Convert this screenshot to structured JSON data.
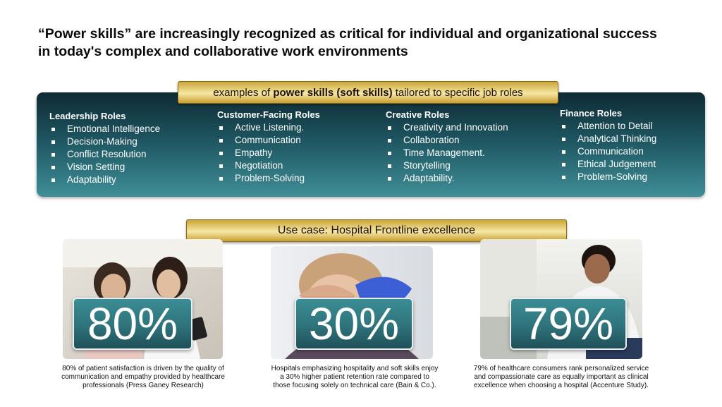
{
  "headline": "“Power skills” are increasingly recognized as critical for individual and organizational success in today's complex and collaborative work environments",
  "roles_banner": {
    "prefix": "examples of ",
    "bold": "power skills (soft skills)",
    "suffix": " tailored to specific job roles"
  },
  "roles": [
    {
      "title": "Leadership Roles",
      "items": [
        "Emotional Intelligence",
        "Decision-Making",
        "Conflict Resolution",
        "Vision Setting",
        "Adaptability"
      ]
    },
    {
      "title": "Customer-Facing Roles",
      "items": [
        "Active Listening.",
        "Communication",
        "Empathy",
        "Negotiation",
        "Problem-Solving"
      ]
    },
    {
      "title": "Creative Roles",
      "items": [
        "Creativity and Innovation",
        "Collaboration",
        "Time Management.",
        "Storytelling",
        "Adaptability."
      ]
    },
    {
      "title": "Finance Roles",
      "items": [
        "Attention to Detail",
        "Analytical Thinking",
        "Communication",
        "Ethical Judgement",
        "Problem-Solving"
      ]
    }
  ],
  "usecase_banner": "Use case: Hospital Frontline excellence",
  "stats": [
    {
      "value": "80%",
      "caption": "80% of patient satisfaction is driven by the quality of communication and empathy provided by healthcare professionals (Press Ganey Research)"
    },
    {
      "value": "30%",
      "caption": "Hospitals emphasizing hospitality and soft skills enjoy a 30% higher patient retention rate compared to those focusing solely on technical care (Bain & Co.)."
    },
    {
      "value": "79%",
      "caption": "79% of healthcare consumers rank personalized service and compassionate care as equally important as clinical excellence when choosing a hospital (Accenture Study)."
    }
  ],
  "colors": {
    "panel_dark": "#0e2a33",
    "panel_light": "#3f8e97",
    "gold": "#e3c46a",
    "stat_teal": "#2f737b"
  }
}
